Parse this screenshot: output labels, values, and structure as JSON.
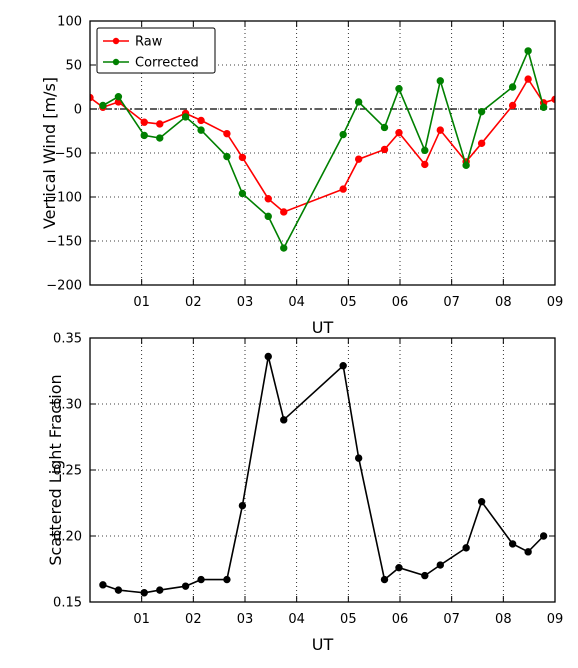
{
  "chart_data": [
    {
      "type": "line",
      "title": "",
      "xlabel": "UT",
      "ylabel": "Vertical Wind [m/s]",
      "xlim": [
        0,
        9
      ],
      "ylim": [
        -200,
        100
      ],
      "x_ticks": [
        1,
        2,
        3,
        4,
        5,
        6,
        7,
        8,
        9
      ],
      "x_tick_labels": [
        "01",
        "02",
        "03",
        "04",
        "05",
        "06",
        "07",
        "08",
        "09"
      ],
      "y_ticks": [
        100,
        50,
        0,
        -50,
        -100,
        -150,
        -200
      ],
      "y_tick_labels": [
        "100",
        "50",
        "0",
        "−50",
        "−100",
        "−150",
        "−200"
      ],
      "grid": true,
      "legend_position": "top-left",
      "zero_reference_line": true,
      "series": [
        {
          "name": "Raw",
          "color": "#ff0000",
          "x": [
            0.0,
            0.25,
            0.55,
            1.05,
            1.35,
            1.85,
            2.15,
            2.65,
            2.95,
            3.45,
            3.75,
            4.9,
            5.2,
            5.7,
            5.98,
            6.48,
            6.78,
            7.28,
            7.58,
            8.18,
            8.48,
            8.78,
            9.0
          ],
          "y": [
            13,
            2,
            8,
            -15,
            -17,
            -5,
            -13,
            -28,
            -55,
            -102,
            -117,
            -91,
            -57,
            -46,
            -27,
            -63,
            -24,
            -60,
            -39,
            4,
            34,
            7,
            11
          ]
        },
        {
          "name": "Corrected",
          "color": "#008000",
          "x": [
            0.25,
            0.55,
            1.05,
            1.35,
            1.85,
            2.15,
            2.65,
            2.95,
            3.45,
            3.75,
            4.9,
            5.2,
            5.7,
            5.98,
            6.48,
            6.78,
            7.28,
            7.58,
            8.18,
            8.48,
            8.78
          ],
          "y": [
            4,
            14,
            -30,
            -33,
            -9,
            -24,
            -54,
            -96,
            -122,
            -158,
            -29,
            8,
            -21,
            23,
            -47,
            32,
            -64,
            -3,
            25,
            66,
            2
          ]
        }
      ]
    },
    {
      "type": "line",
      "title": "",
      "xlabel": "UT",
      "ylabel": "Scattered Light Fraction",
      "xlim": [
        0,
        9
      ],
      "ylim": [
        0.15,
        0.35
      ],
      "x_ticks": [
        1,
        2,
        3,
        4,
        5,
        6,
        7,
        8,
        9
      ],
      "x_tick_labels": [
        "01",
        "02",
        "03",
        "04",
        "05",
        "06",
        "07",
        "08",
        "09"
      ],
      "y_ticks": [
        0.35,
        0.3,
        0.25,
        0.2,
        0.15
      ],
      "y_tick_labels": [
        "0.35",
        "0.30",
        "0.25",
        "0.20",
        "0.15"
      ],
      "grid": true,
      "series": [
        {
          "color": "#000000",
          "x": [
            0.25,
            0.55,
            1.05,
            1.35,
            1.85,
            2.15,
            2.65,
            2.95,
            3.45,
            3.75,
            4.9,
            5.2,
            5.7,
            5.98,
            6.48,
            6.78,
            7.28,
            7.58,
            8.18,
            8.48,
            8.78
          ],
          "y": [
            0.163,
            0.159,
            0.157,
            0.159,
            0.162,
            0.167,
            0.167,
            0.223,
            0.336,
            0.288,
            0.329,
            0.259,
            0.167,
            0.176,
            0.17,
            0.178,
            0.191,
            0.226,
            0.194,
            0.188,
            0.2
          ]
        }
      ]
    }
  ]
}
